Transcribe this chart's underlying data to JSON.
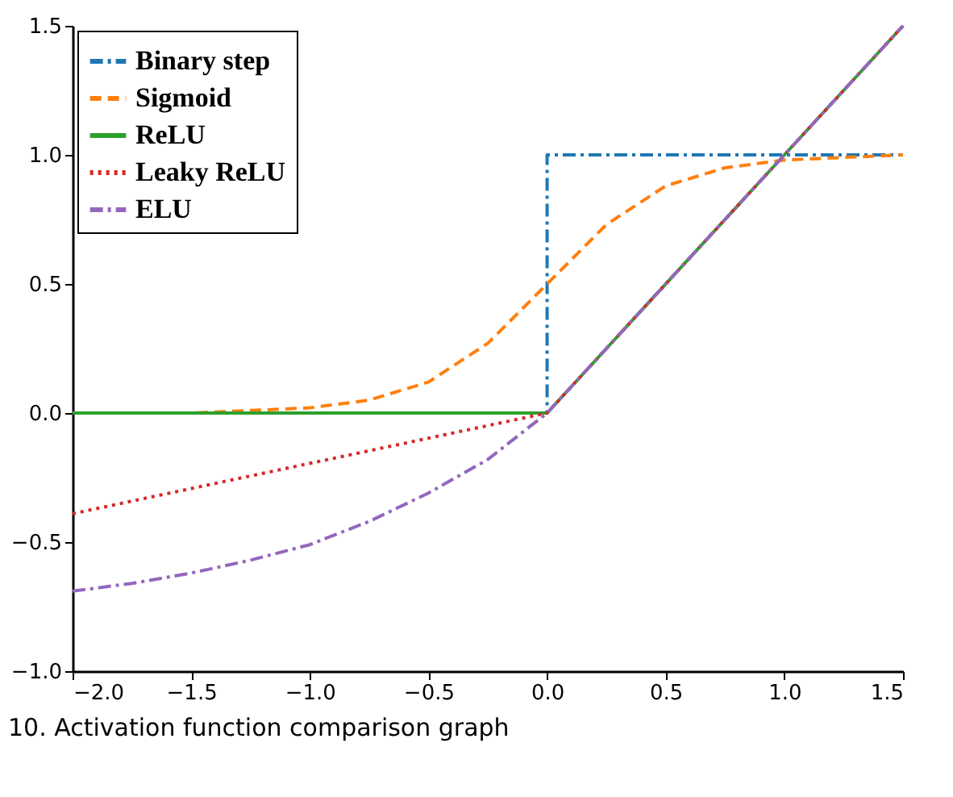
{
  "chart_data": {
    "type": "line",
    "annotations": [
      "10. Activation function comparison graph"
    ],
    "xlim": [
      -2.0,
      1.5
    ],
    "ylim": [
      -1.0,
      1.5
    ],
    "xticks": [
      {
        "value": -2.0,
        "label": "−2.0"
      },
      {
        "value": -1.5,
        "label": "−1.5"
      },
      {
        "value": -1.0,
        "label": "−1.0"
      },
      {
        "value": -0.5,
        "label": "−0.5"
      },
      {
        "value": 0.0,
        "label": "0.0"
      },
      {
        "value": 0.5,
        "label": "0.5"
      },
      {
        "value": 1.0,
        "label": "1.0"
      },
      {
        "value": 1.5,
        "label": "1.5"
      }
    ],
    "yticks": [
      {
        "value": -1.0,
        "label": "−1.0"
      },
      {
        "value": -0.5,
        "label": "−0.5"
      },
      {
        "value": 0.0,
        "label": "0.0"
      },
      {
        "value": 0.5,
        "label": "0.5"
      },
      {
        "value": 1.0,
        "label": "1.0"
      },
      {
        "value": 1.5,
        "label": "1.5"
      }
    ],
    "grid": false,
    "legend": "top left",
    "marker": "none",
    "series": [
      {
        "name": "Binary step",
        "color": "#1f77b4",
        "line_style": "dashdot",
        "x": [
          -2.0,
          0.0,
          0.0,
          1.5
        ],
        "values": [
          0.0,
          0.0,
          1.0,
          1.0
        ]
      },
      {
        "name": "Sigmoid",
        "color": "#ff7f0e",
        "line_style": "dashed",
        "x": [
          -2.0,
          -1.75,
          -1.5,
          -1.25,
          -1.0,
          -0.75,
          -0.5,
          -0.25,
          0.0,
          0.25,
          0.5,
          0.75,
          1.0,
          1.25,
          1.5
        ],
        "values": [
          0.0,
          0.0,
          0.0,
          0.01,
          0.02,
          0.05,
          0.12,
          0.27,
          0.5,
          0.73,
          0.88,
          0.95,
          0.98,
          0.99,
          1.0
        ]
      },
      {
        "name": "ReLU",
        "color": "#2ca02c",
        "line_style": "solid",
        "x": [
          -2.0,
          0.0,
          1.5
        ],
        "values": [
          0.0,
          0.0,
          1.5
        ]
      },
      {
        "name": "Leaky ReLU",
        "color": "#d62728",
        "line_style": "dotted",
        "x": [
          -2.0,
          0.0,
          1.5
        ],
        "values": [
          -0.39,
          0.0,
          1.5
        ]
      },
      {
        "name": "ELU",
        "color": "#9467bd",
        "line_style": "dashdot",
        "x": [
          -2.0,
          -1.75,
          -1.5,
          -1.25,
          -1.0,
          -0.75,
          -0.5,
          -0.25,
          0.0,
          1.5
        ],
        "values": [
          -0.69,
          -0.66,
          -0.62,
          -0.57,
          -0.51,
          -0.42,
          -0.31,
          -0.18,
          0.0,
          1.5
        ]
      }
    ]
  }
}
